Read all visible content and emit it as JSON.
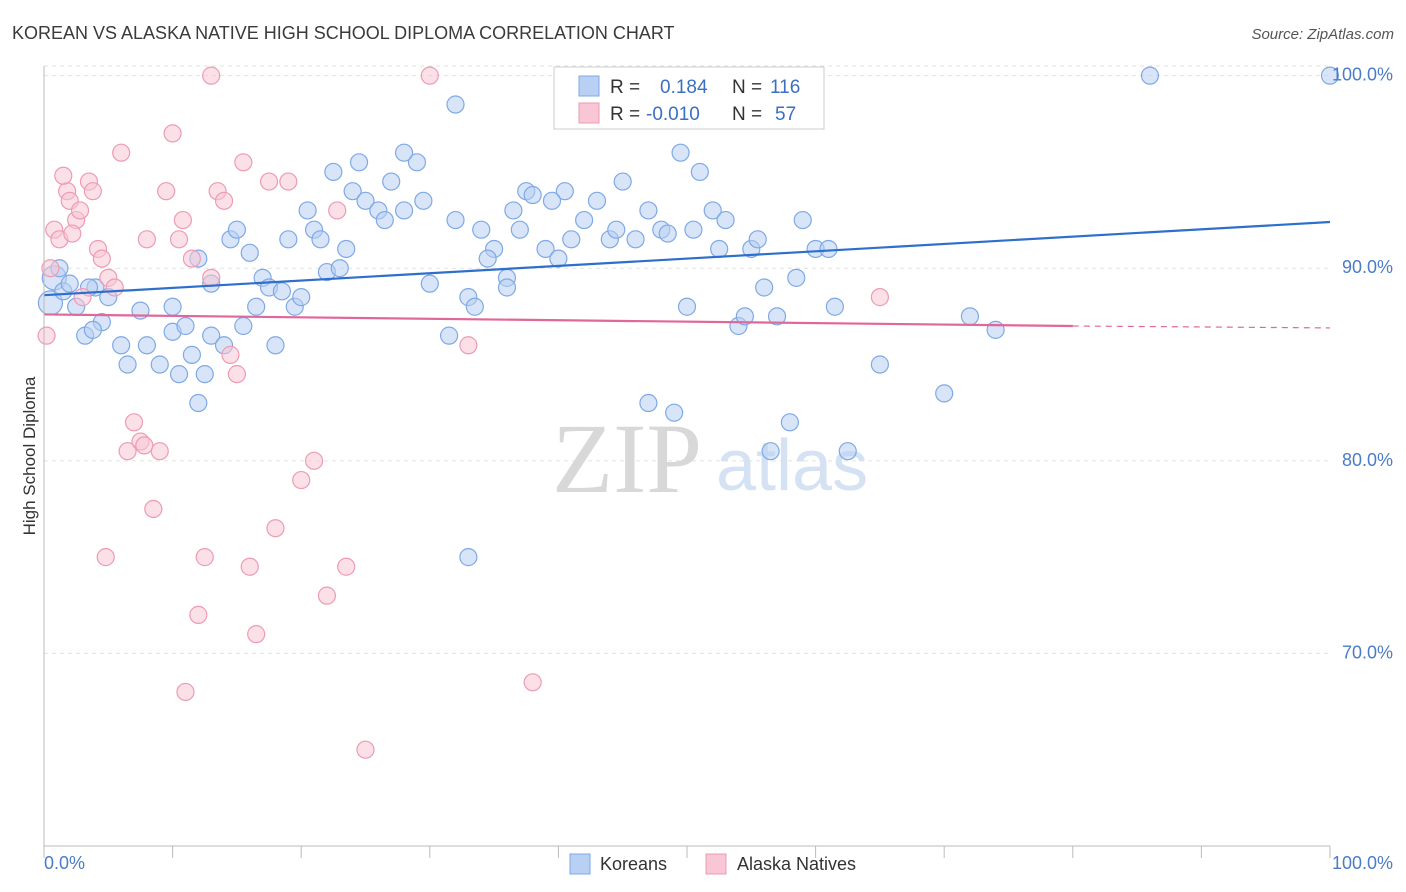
{
  "chart_data": {
    "type": "scatter",
    "title": "KOREAN VS ALASKA NATIVE HIGH SCHOOL DIPLOMA CORRELATION CHART",
    "source": "Source: ZipAtlas.com",
    "ylabel": "High School Diploma",
    "xlabel": "",
    "xlim": [
      0,
      100
    ],
    "ylim": [
      60,
      100.5
    ],
    "x_tick_labels": [
      "0.0%",
      "100.0%"
    ],
    "y_ticks": [
      {
        "value": 100,
        "label": "100.0%"
      },
      {
        "value": 90,
        "label": "90.0%"
      },
      {
        "value": 80,
        "label": "80.0%"
      },
      {
        "value": 70,
        "label": "70.0%"
      }
    ],
    "watermark": {
      "part1": "ZIP",
      "part2": "atlas"
    },
    "legend_stats": [
      {
        "r_label": "R =",
        "r_value": "0.184",
        "n_label": "N =",
        "n_value": "116"
      },
      {
        "r_label": "R =",
        "r_value": "-0.010",
        "n_label": "N =",
        "n_value": "57"
      }
    ],
    "series": [
      {
        "name": "Koreans",
        "color": "#7fa9e6",
        "fill": "#b8d0f3",
        "line_color": "#2f6fcc",
        "trend": {
          "x0": 0,
          "y0": 88.6,
          "x1": 100,
          "y1": 92.4
        },
        "points": [
          [
            0.5,
            88.2
          ],
          [
            0.8,
            89.5
          ],
          [
            1.2,
            90.0
          ],
          [
            1.5,
            88.8
          ],
          [
            2.0,
            89.2
          ],
          [
            2.5,
            88.0
          ],
          [
            3.2,
            86.5
          ],
          [
            4.0,
            89.0
          ],
          [
            4.5,
            87.2
          ],
          [
            5.0,
            88.5
          ],
          [
            3.5,
            89.0
          ],
          [
            3.8,
            86.8
          ],
          [
            6.0,
            86.0
          ],
          [
            6.5,
            85.0
          ],
          [
            7.5,
            87.8
          ],
          [
            8.0,
            86.0
          ],
          [
            10.0,
            86.7
          ],
          [
            10.5,
            84.5
          ],
          [
            11.0,
            87.0
          ],
          [
            12.0,
            90.5
          ],
          [
            13.0,
            89.2
          ],
          [
            14.5,
            91.5
          ],
          [
            15.0,
            92.0
          ],
          [
            16.0,
            90.8
          ],
          [
            17.0,
            89.5
          ],
          [
            17.5,
            89.0
          ],
          [
            18.0,
            86.0
          ],
          [
            19.5,
            88.0
          ],
          [
            20.0,
            88.5
          ],
          [
            21.0,
            92.0
          ],
          [
            22.0,
            89.8
          ],
          [
            23.0,
            90.0
          ],
          [
            24.0,
            94.0
          ],
          [
            25.0,
            93.5
          ],
          [
            26.0,
            93.0
          ],
          [
            26.5,
            92.5
          ],
          [
            27.0,
            94.5
          ],
          [
            28.0,
            93.0
          ],
          [
            29.0,
            95.5
          ],
          [
            29.5,
            93.5
          ],
          [
            30.0,
            89.2
          ],
          [
            31.5,
            86.5
          ],
          [
            32.0,
            92.5
          ],
          [
            33.0,
            88.5
          ],
          [
            33.5,
            88.0
          ],
          [
            34.0,
            92.0
          ],
          [
            35.0,
            91.0
          ],
          [
            36.0,
            89.5
          ],
          [
            36.5,
            93.0
          ],
          [
            37.5,
            94.0
          ],
          [
            38.0,
            93.8
          ],
          [
            39.0,
            91.0
          ],
          [
            40.0,
            90.5
          ],
          [
            40.5,
            94.0
          ],
          [
            41.0,
            91.5
          ],
          [
            42.0,
            92.5
          ],
          [
            43.0,
            93.5
          ],
          [
            44.0,
            91.5
          ],
          [
            45.0,
            94.5
          ],
          [
            46.0,
            91.5
          ],
          [
            47.0,
            93.0
          ],
          [
            48.0,
            92.0
          ],
          [
            48.5,
            91.8
          ],
          [
            49.5,
            96.0
          ],
          [
            50.5,
            92.0
          ],
          [
            51.0,
            95.0
          ],
          [
            52.0,
            93.0
          ],
          [
            53.0,
            92.5
          ],
          [
            54.0,
            87.0
          ],
          [
            54.5,
            87.5
          ],
          [
            47.0,
            83.0
          ],
          [
            49.0,
            82.5
          ],
          [
            50.0,
            88.0
          ],
          [
            55.0,
            91.0
          ],
          [
            56.0,
            89.0
          ],
          [
            56.5,
            80.5
          ],
          [
            57.0,
            87.5
          ],
          [
            58.0,
            82.0
          ],
          [
            58.5,
            89.5
          ],
          [
            59.0,
            92.5
          ],
          [
            60.0,
            91.0
          ],
          [
            61.0,
            91.0
          ],
          [
            61.5,
            88.0
          ],
          [
            62.5,
            80.5
          ],
          [
            65.0,
            85.0
          ],
          [
            70.0,
            83.5
          ],
          [
            72.0,
            87.5
          ],
          [
            74.0,
            86.8
          ],
          [
            86.0,
            100.0
          ],
          [
            100.0,
            100.0
          ],
          [
            32.0,
            98.5
          ],
          [
            28.0,
            96.0
          ],
          [
            24.5,
            95.5
          ],
          [
            22.5,
            95.0
          ],
          [
            33.0,
            75.0
          ],
          [
            12.5,
            84.5
          ],
          [
            13.0,
            86.5
          ],
          [
            14.0,
            86.0
          ],
          [
            15.5,
            87.0
          ],
          [
            16.5,
            88.0
          ],
          [
            18.5,
            88.8
          ],
          [
            9.0,
            85.0
          ],
          [
            10.0,
            88.0
          ],
          [
            11.5,
            85.5
          ],
          [
            12.0,
            83.0
          ],
          [
            19.0,
            91.5
          ],
          [
            20.5,
            93.0
          ],
          [
            21.5,
            91.5
          ],
          [
            23.5,
            91.0
          ],
          [
            34.5,
            90.5
          ],
          [
            36.0,
            89.0
          ],
          [
            37.0,
            92.0
          ],
          [
            39.5,
            93.5
          ],
          [
            44.5,
            92.0
          ],
          [
            52.5,
            91.0
          ],
          [
            55.5,
            91.5
          ]
        ]
      },
      {
        "name": "Alaska Natives",
        "color": "#ee9bb5",
        "fill": "#f8c6d5",
        "line_color": "#e0679a",
        "trend": {
          "x0": 0,
          "y0": 87.6,
          "x1": 80,
          "y1": 87.0
        },
        "trend_dash": {
          "x0": 80,
          "y0": 87.0,
          "x1": 100,
          "y1": 86.9
        },
        "points": [
          [
            0.2,
            86.5
          ],
          [
            0.5,
            90.0
          ],
          [
            0.8,
            92.0
          ],
          [
            1.2,
            91.5
          ],
          [
            1.8,
            94.0
          ],
          [
            2.0,
            93.5
          ],
          [
            2.5,
            92.5
          ],
          [
            2.8,
            93.0
          ],
          [
            3.5,
            94.5
          ],
          [
            3.8,
            94.0
          ],
          [
            4.2,
            91.0
          ],
          [
            4.5,
            90.5
          ],
          [
            5.0,
            89.5
          ],
          [
            5.5,
            89.0
          ],
          [
            6.0,
            96.0
          ],
          [
            7.0,
            82.0
          ],
          [
            7.5,
            81.0
          ],
          [
            8.0,
            91.5
          ],
          [
            8.5,
            77.5
          ],
          [
            9.0,
            80.5
          ],
          [
            10.0,
            97.0
          ],
          [
            10.5,
            91.5
          ],
          [
            11.0,
            68.0
          ],
          [
            12.0,
            72.0
          ],
          [
            13.0,
            89.5
          ],
          [
            13.5,
            94.0
          ],
          [
            14.0,
            93.5
          ],
          [
            14.5,
            85.5
          ],
          [
            15.0,
            84.5
          ],
          [
            16.0,
            74.5
          ],
          [
            17.5,
            94.5
          ],
          [
            18.0,
            76.5
          ],
          [
            19.0,
            94.5
          ],
          [
            20.0,
            79.0
          ],
          [
            21.0,
            80.0
          ],
          [
            22.0,
            73.0
          ],
          [
            23.5,
            74.5
          ],
          [
            25.0,
            65.0
          ],
          [
            30.0,
            100.0
          ],
          [
            33.0,
            86.0
          ],
          [
            38.0,
            68.5
          ],
          [
            42.0,
            100.0
          ],
          [
            65.0,
            88.5
          ],
          [
            13.0,
            100.0
          ],
          [
            6.5,
            80.5
          ],
          [
            4.8,
            75.0
          ],
          [
            3.0,
            88.5
          ],
          [
            16.5,
            71.0
          ],
          [
            12.5,
            75.0
          ],
          [
            7.8,
            80.8
          ],
          [
            2.2,
            91.8
          ],
          [
            1.5,
            94.8
          ],
          [
            9.5,
            94.0
          ],
          [
            10.8,
            92.5
          ],
          [
            11.5,
            90.5
          ],
          [
            15.5,
            95.5
          ],
          [
            22.8,
            93.0
          ]
        ]
      }
    ]
  }
}
